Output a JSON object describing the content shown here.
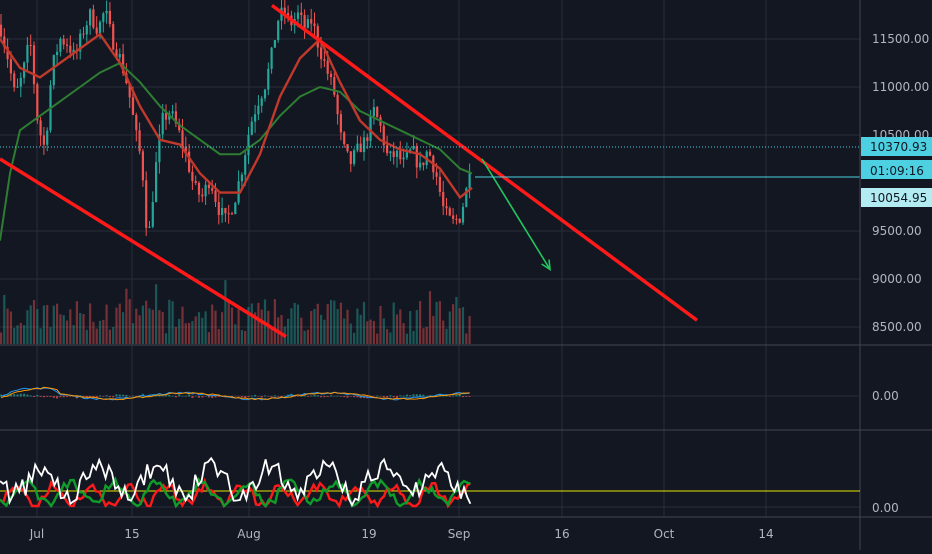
{
  "colors": {
    "background": "#131722",
    "grid": "#2a2e39",
    "axis_text": "#b2b5be",
    "trendline": "#ff1a1a",
    "projection": "#22c55e",
    "ma_fast": "#c0392b",
    "ma_slow": "#2e7d32",
    "candle_up": "#26a69a",
    "candle_down": "#ef5350",
    "price_label_bg": "#4dd0e1",
    "price_label_text": "#131722",
    "osc_white": "#ffffff",
    "osc_green": "#0f9d2a",
    "osc_red": "#ff1a1a",
    "osc_level": "#e6e600"
  },
  "chart_data": {
    "type": "candlestick",
    "y_axis_ticks": [
      "11500.00",
      "11000.00",
      "10500.00",
      "9500.00",
      "9000.00",
      "8500.00"
    ],
    "x_axis_ticks": [
      "Jul",
      "15",
      "Aug",
      "19",
      "Sep",
      "16",
      "Oct",
      "14"
    ],
    "price_labels": {
      "current": "10370.93",
      "countdown": "01:09:16",
      "level": "10054.95"
    },
    "ylim": [
      8400,
      11850
    ],
    "close_path": [
      [
        0,
        11650
      ],
      [
        8,
        11300
      ],
      [
        15,
        10900
      ],
      [
        22,
        11100
      ],
      [
        30,
        11500
      ],
      [
        38,
        10600
      ],
      [
        45,
        10350
      ],
      [
        52,
        11200
      ],
      [
        60,
        11500
      ],
      [
        68,
        11450
      ],
      [
        75,
        11300
      ],
      [
        82,
        11550
      ],
      [
        90,
        11750
      ],
      [
        98,
        11600
      ],
      [
        105,
        11800
      ],
      [
        112,
        11500
      ],
      [
        120,
        11300
      ],
      [
        128,
        11000
      ],
      [
        136,
        10500
      ],
      [
        142,
        10200
      ],
      [
        148,
        9350
      ],
      [
        155,
        10100
      ],
      [
        162,
        10650
      ],
      [
        170,
        10750
      ],
      [
        178,
        10550
      ],
      [
        186,
        10300
      ],
      [
        194,
        9950
      ],
      [
        202,
        9850
      ],
      [
        210,
        10050
      ],
      [
        218,
        9750
      ],
      [
        226,
        9600
      ],
      [
        234,
        9800
      ],
      [
        242,
        10150
      ],
      [
        250,
        10600
      ],
      [
        258,
        10850
      ],
      [
        266,
        11050
      ],
      [
        272,
        11350
      ],
      [
        278,
        11700
      ],
      [
        284,
        11800
      ],
      [
        290,
        11650
      ],
      [
        298,
        11750
      ],
      [
        306,
        11600
      ],
      [
        312,
        11700
      ],
      [
        318,
        11450
      ],
      [
        326,
        11200
      ],
      [
        334,
        10950
      ],
      [
        342,
        10400
      ],
      [
        350,
        10200
      ],
      [
        358,
        10350
      ],
      [
        366,
        10450
      ],
      [
        374,
        10750
      ],
      [
        380,
        10600
      ],
      [
        388,
        10250
      ],
      [
        396,
        10300
      ],
      [
        404,
        10200
      ],
      [
        412,
        10350
      ],
      [
        420,
        10150
      ],
      [
        428,
        10350
      ],
      [
        436,
        10100
      ],
      [
        444,
        9700
      ],
      [
        452,
        9580
      ],
      [
        460,
        9650
      ],
      [
        466,
        9900
      ],
      [
        472,
        10370
      ]
    ],
    "ma_fast": [
      [
        0,
        11500
      ],
      [
        20,
        11200
      ],
      [
        40,
        11100
      ],
      [
        60,
        11250
      ],
      [
        80,
        11400
      ],
      [
        100,
        11550
      ],
      [
        120,
        11250
      ],
      [
        140,
        10800
      ],
      [
        160,
        10450
      ],
      [
        180,
        10400
      ],
      [
        200,
        10100
      ],
      [
        220,
        9900
      ],
      [
        240,
        9900
      ],
      [
        260,
        10300
      ],
      [
        280,
        10900
      ],
      [
        300,
        11300
      ],
      [
        320,
        11500
      ],
      [
        340,
        11050
      ],
      [
        360,
        10650
      ],
      [
        380,
        10450
      ],
      [
        400,
        10350
      ],
      [
        420,
        10300
      ],
      [
        440,
        10150
      ],
      [
        460,
        9850
      ],
      [
        472,
        9950
      ]
    ],
    "ma_slow": [
      [
        0,
        9400
      ],
      [
        10,
        10100
      ],
      [
        20,
        10550
      ],
      [
        40,
        10700
      ],
      [
        60,
        10850
      ],
      [
        80,
        11000
      ],
      [
        100,
        11150
      ],
      [
        120,
        11250
      ],
      [
        140,
        11050
      ],
      [
        160,
        10800
      ],
      [
        180,
        10600
      ],
      [
        200,
        10450
      ],
      [
        220,
        10300
      ],
      [
        240,
        10300
      ],
      [
        260,
        10450
      ],
      [
        280,
        10700
      ],
      [
        300,
        10900
      ],
      [
        320,
        11000
      ],
      [
        340,
        10950
      ],
      [
        360,
        10750
      ],
      [
        380,
        10650
      ],
      [
        400,
        10550
      ],
      [
        420,
        10450
      ],
      [
        440,
        10350
      ],
      [
        460,
        10150
      ],
      [
        472,
        10100
      ]
    ],
    "upper_trendline": {
      "from": [
        272,
        11850
      ],
      "to": [
        697,
        8570
      ]
    },
    "lower_trendline": {
      "from": [
        0,
        10250
      ],
      "to": [
        286,
        8400
      ]
    },
    "projection_arrow": {
      "from": [
        482,
        10250
      ],
      "to": [
        550,
        9100
      ]
    },
    "macd_axis_label": "0.00",
    "oscillator_axis_label": "0.00",
    "oscillator_level_label": ""
  }
}
